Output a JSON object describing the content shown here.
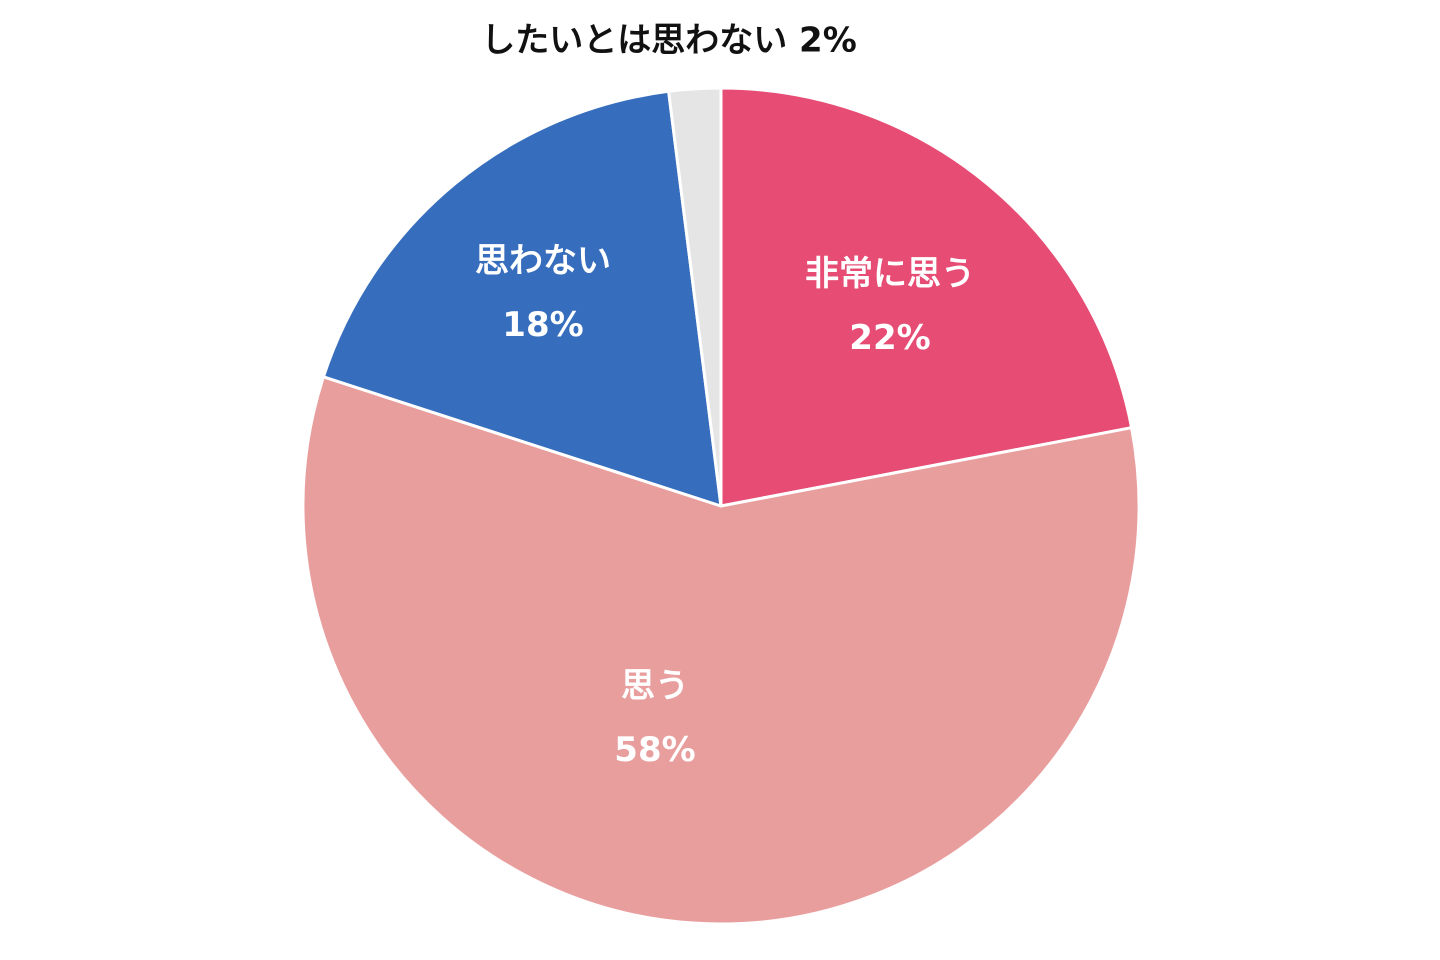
{
  "chart_data": {
    "type": "pie",
    "slices": [
      {
        "label": "非常に思う",
        "value": 22,
        "value_label": "22%",
        "color": "#e64c74"
      },
      {
        "label": "思う",
        "value": 58,
        "value_label": "58%",
        "color": "#e99e9e"
      },
      {
        "label": "思わない",
        "value": 18,
        "value_label": "18%",
        "color": "#366dbd"
      },
      {
        "label": "したいとは思わない",
        "value": 2,
        "value_label": "2%",
        "color": "#e5e5e5"
      }
    ],
    "start_angle": "12 o'clock",
    "direction": "clockwise"
  }
}
